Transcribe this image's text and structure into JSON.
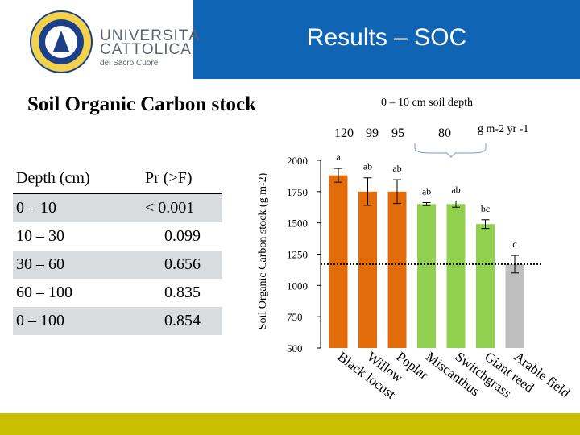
{
  "header": {
    "title": "Results – SOC"
  },
  "university": {
    "line1": "UNIVERSITÀ",
    "line2": "CATTOLICA",
    "line3": "del Sacro Cuore"
  },
  "section_title": "Soil Organic Carbon stock",
  "table": {
    "headers": [
      "Depth (cm)",
      "Pr (>F)"
    ],
    "rows": [
      [
        "0 – 10",
        "< 0.001"
      ],
      [
        "10 – 30",
        "0.099"
      ],
      [
        "30 – 60",
        "0.656"
      ],
      [
        "60 – 100",
        "0.835"
      ],
      [
        "0 – 100",
        "0.854"
      ]
    ]
  },
  "colors": {
    "header_bar": "#0f65b3",
    "orange": "#e36c0a",
    "green": "#92d050",
    "grey": "#bfbfbf",
    "bottom_bar": "#c9c100"
  },
  "chart_data": {
    "type": "bar",
    "title": "0 – 10 cm soil depth",
    "ylabel": "Soil Organic Carbon stock (g m-2)",
    "unit_label": "g m-2 yr -1",
    "ylim": [
      500,
      2000
    ],
    "yticks": [
      2000,
      1750,
      1500,
      1250,
      1000,
      750,
      500
    ],
    "categories": [
      "Black locust",
      "Willow",
      "Poplar",
      "Miscanthus",
      "Switchgrass",
      "Giant reed",
      "Arable field"
    ],
    "values": [
      1880,
      1750,
      1750,
      1650,
      1650,
      1490,
      1170
    ],
    "errors": [
      55,
      110,
      95,
      12,
      25,
      35,
      70
    ],
    "letters": [
      "a",
      "ab",
      "ab",
      "ab",
      "ab",
      "bc",
      "c"
    ],
    "bar_colors": [
      "#e36c0a",
      "#e36c0a",
      "#e36c0a",
      "#92d050",
      "#92d050",
      "#92d050",
      "#bfbfbf"
    ],
    "top_numbers": [
      "120",
      "99",
      "95",
      "80"
    ],
    "reference_line": 1170
  }
}
